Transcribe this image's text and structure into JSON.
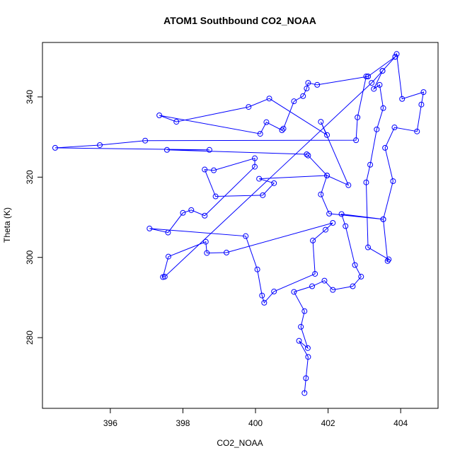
{
  "chart_data": {
    "type": "scatter",
    "line": true,
    "color": "#0000ff",
    "title": "ATOM1 Southbound CO2_NOAA",
    "xlabel": "CO2_NOAA",
    "ylabel": "Theta (K)",
    "xlim": [
      394.13,
      405.03
    ],
    "ylim": [
      262.38,
      353.57
    ],
    "xticks": [
      396,
      398,
      400,
      402,
      404
    ],
    "yticks": [
      280,
      300,
      320,
      340
    ],
    "x": [
      401.35,
      401.39,
      401.45,
      401.2,
      401.44,
      401.25,
      401.35,
      401.06,
      401.56,
      401.9,
      402.13,
      402.68,
      402.91,
      402.74,
      402.48,
      402.37,
      403.52,
      403.64,
      403.67,
      403.1,
      403.05,
      403.16,
      403.34,
      403.52,
      403.42,
      403.26,
      403.5,
      403.85,
      403.89,
      404.04,
      404.63,
      404.57,
      404.45,
      403.83,
      403.57,
      403.79,
      403.52,
      402.03,
      401.8,
      401.97,
      401.45,
      401.41,
      397.56,
      398.73,
      394.48,
      395.71,
      396.96,
      402.77,
      402.81,
      403.05,
      403.1,
      401.7,
      401.45,
      401.41,
      401.31,
      401.06,
      400.77,
      400.73,
      400.3,
      400.13,
      397.35,
      397.82,
      399.81,
      400.38,
      401.97,
      401.8,
      402.56,
      401.97,
      400.1,
      400.51,
      400.2,
      398.9,
      398.6,
      398.85,
      399.98,
      399.98,
      398.6,
      398.23,
      398.0,
      397.59,
      397.08,
      399.73,
      400.05,
      400.18,
      400.24,
      400.51,
      401.64,
      401.58,
      401.93,
      402.13,
      399.2,
      398.66,
      398.63,
      397.6,
      397.45,
      397.5,
      403.2,
      403.5,
      403.85,
      403.1
    ],
    "values": [
      266.2,
      269.9,
      275.2,
      279.2,
      277.4,
      282.7,
      286.6,
      291.4,
      292.8,
      294.2,
      291.9,
      292.8,
      295.2,
      298.1,
      307.8,
      310.8,
      309.5,
      299.1,
      299.5,
      302.5,
      318.7,
      323.1,
      331.9,
      337.2,
      343.0,
      342.0,
      346.5,
      350.0,
      350.7,
      339.5,
      341.2,
      338.1,
      331.4,
      332.4,
      327.3,
      319.0,
      309.5,
      310.9,
      315.7,
      320.4,
      325.4,
      325.7,
      326.8,
      326.8,
      327.3,
      328.0,
      329.1,
      329.2,
      334.9,
      345.1,
      345.1,
      343.0,
      343.5,
      342.1,
      340.2,
      338.9,
      332.1,
      331.7,
      333.7,
      330.8,
      335.4,
      333.8,
      337.5,
      339.6,
      330.5,
      333.8,
      318.0,
      320.4,
      319.6,
      318.5,
      315.5,
      315.2,
      321.9,
      321.7,
      324.7,
      322.6,
      310.4,
      311.8,
      311.1,
      306.2,
      307.2,
      305.3,
      297.0,
      290.5,
      288.7,
      291.5,
      295.9,
      304.2,
      306.9,
      308.6,
      301.2,
      301.1,
      303.9,
      300.2,
      295.1,
      295.2,
      343.5,
      346.5,
      350.0,
      345.1
    ]
  }
}
